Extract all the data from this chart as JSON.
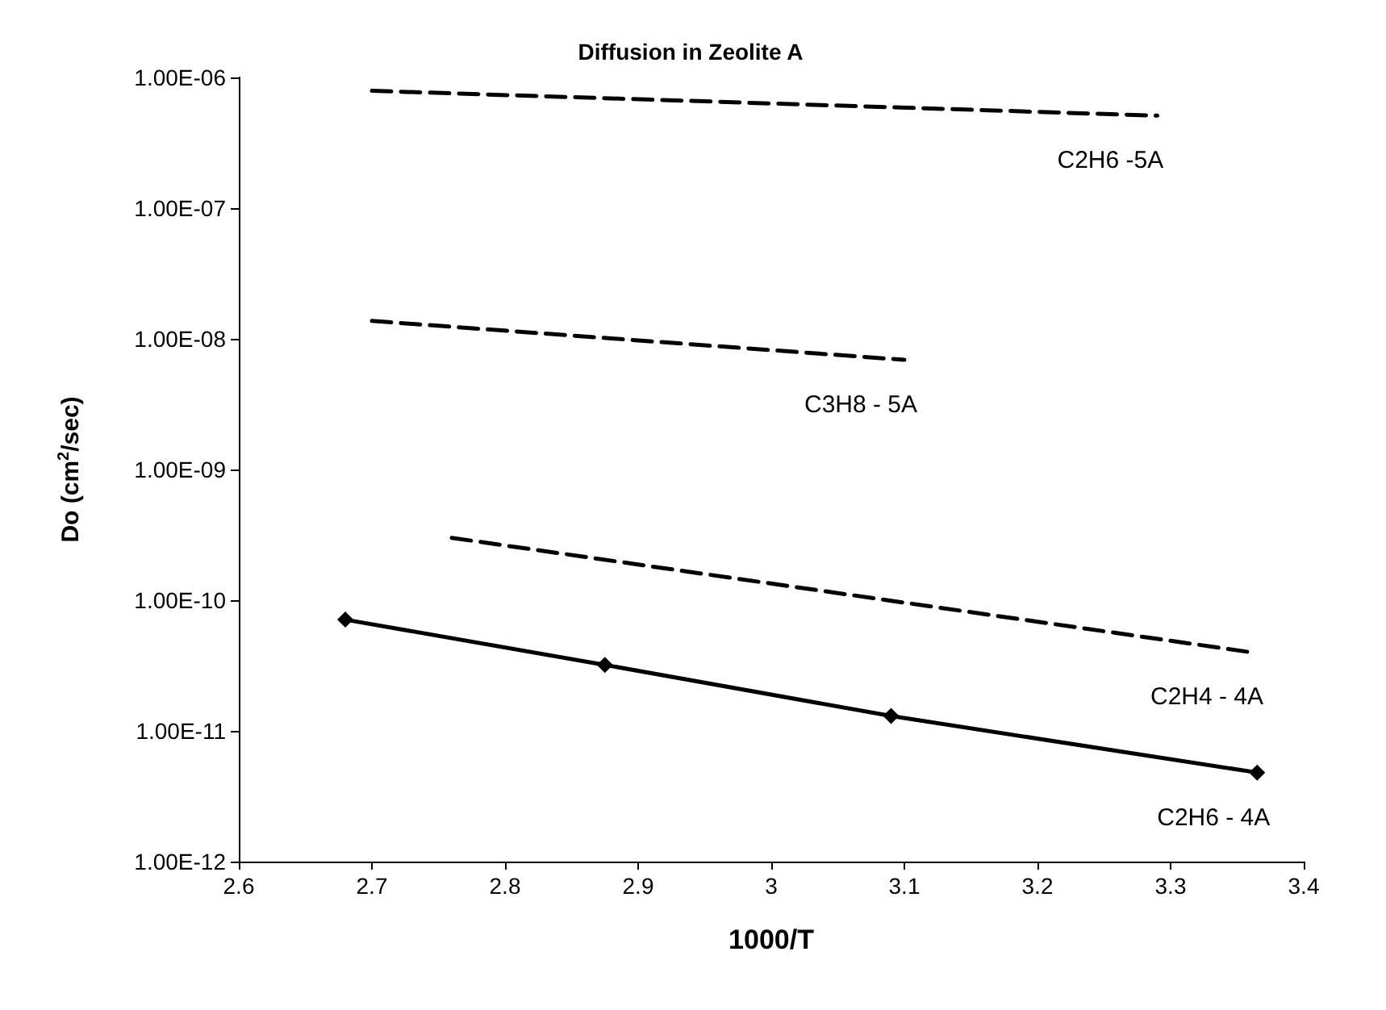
{
  "chart_data": {
    "type": "line",
    "title": "Diffusion in Zeolite A",
    "xlabel": "1000/T",
    "ylabel": "Do (cm$^{2}$/sec)",
    "log": "y",
    "grid": false,
    "legend": false,
    "xlim": [
      2.6,
      3.4
    ],
    "xticks": [
      2.6,
      2.7,
      2.8,
      2.9,
      3,
      3.1,
      3.2,
      3.3,
      3.4
    ],
    "ylim": [
      1e-12,
      1e-06
    ],
    "yticks": [
      {
        "value": 1e-12,
        "label": "1.00E-12"
      },
      {
        "value": 1e-11,
        "label": "1.00E-11"
      },
      {
        "value": 1e-10,
        "label": "1.00E-10"
      },
      {
        "value": 1e-09,
        "label": "1.00E-09"
      },
      {
        "value": 1e-08,
        "label": "1.00E-08"
      },
      {
        "value": 1e-07,
        "label": "1.00E-07"
      },
      {
        "value": 1e-06,
        "label": "1.00E-06"
      }
    ],
    "series": [
      {
        "name": "C2H6 -5A",
        "color": "#000000",
        "x": [
          2.7,
          3.29
        ],
        "values": [
          7.9e-07,
          5.1e-07
        ],
        "line_style": "dashed",
        "marker": "none"
      },
      {
        "name": "C3H8 - 5A",
        "color": "#000000",
        "x": [
          2.7,
          3.1
        ],
        "values": [
          1.37e-08,
          6.9e-09
        ],
        "line_style": "dashed",
        "marker": "none"
      },
      {
        "name": "C2H4 - 4A",
        "color": "#000000",
        "x": [
          2.76,
          3.36
        ],
        "values": [
          3e-10,
          4e-11
        ],
        "line_style": "dashed",
        "marker": "none"
      },
      {
        "name": "C2H6 - 4A",
        "color": "#000000",
        "x": [
          2.68,
          2.875,
          3.09,
          3.365
        ],
        "values": [
          7.1e-11,
          3.2e-11,
          1.3e-11,
          4.8e-12
        ],
        "line_style": "solid",
        "marker": "diamond"
      }
    ]
  }
}
